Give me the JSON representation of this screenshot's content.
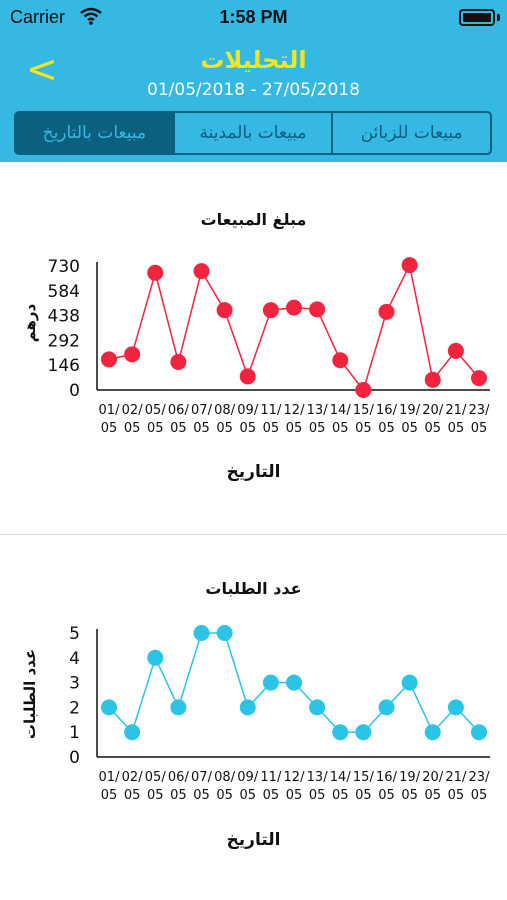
{
  "status_bar": {
    "carrier": "Carrier",
    "time": "1:58 PM"
  },
  "nav": {
    "back_glyph": "<",
    "title": "التحليلات",
    "date_range": "01/05/2018 - 27/05/2018"
  },
  "segments": [
    {
      "label": "مبيعات للزبائن",
      "active": false
    },
    {
      "label": "مبيعات بالمدينة",
      "active": false
    },
    {
      "label": "مبيعات بالتاريخ",
      "active": true
    }
  ],
  "colors": {
    "header": "#35b9e3",
    "title_yellow": "#f5e61c",
    "sales_series": "#f0243f",
    "orders_series": "#2bc4e6"
  },
  "chart_data": [
    {
      "type": "line",
      "title": "مبلغ المبيعات",
      "xlabel": "التاريخ",
      "ylabel": "درهم",
      "yticks": [
        "0",
        "146",
        "292",
        "438",
        "584",
        "730"
      ],
      "ylim": [
        0,
        730
      ],
      "categories": [
        "01/05",
        "02/05",
        "05/05",
        "06/05",
        "07/05",
        "08/05",
        "09/05",
        "11/05",
        "12/05",
        "13/05",
        "14/05",
        "15/05",
        "16/05",
        "19/05",
        "20/05",
        "21/05",
        "23/05"
      ],
      "values": [
        180,
        210,
        690,
        165,
        700,
        470,
        80,
        470,
        485,
        475,
        175,
        0,
        460,
        735,
        60,
        230,
        70
      ],
      "color": "#f0243f",
      "grid": false
    },
    {
      "type": "line",
      "title": "عدد الطلبات",
      "xlabel": "التاريخ",
      "ylabel": "عدد الطلبات",
      "yticks": [
        "0",
        "1",
        "2",
        "3",
        "4",
        "5"
      ],
      "ylim": [
        0,
        5
      ],
      "categories": [
        "01/05",
        "02/05",
        "05/05",
        "06/05",
        "07/05",
        "08/05",
        "09/05",
        "11/05",
        "12/05",
        "13/05",
        "14/05",
        "15/05",
        "16/05",
        "19/05",
        "20/05",
        "21/05",
        "23/05"
      ],
      "values": [
        2,
        1,
        4,
        2,
        5,
        5,
        2,
        3,
        3,
        2,
        1,
        1,
        2,
        3,
        1,
        2,
        1
      ],
      "color": "#2bc4e6",
      "grid": false
    }
  ]
}
